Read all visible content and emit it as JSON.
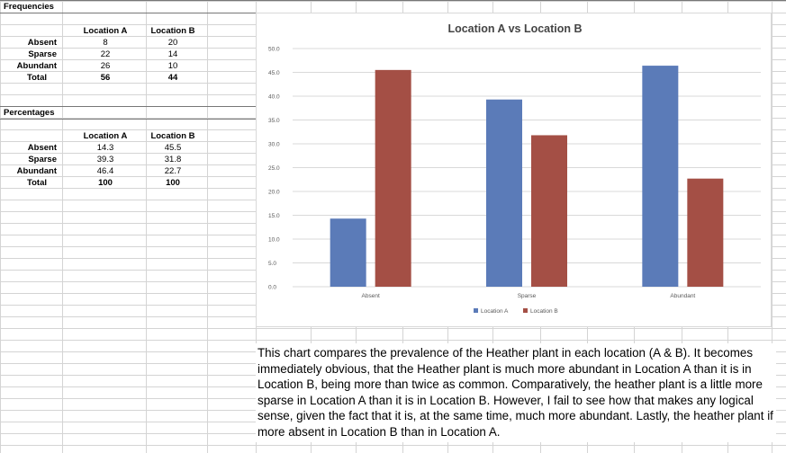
{
  "frequencies": {
    "title": "Frequencies",
    "headers": [
      "Location A",
      "Location B"
    ],
    "rows": [
      {
        "label": "Absent",
        "a": "8",
        "b": "20"
      },
      {
        "label": "Sparse",
        "a": "22",
        "b": "14"
      },
      {
        "label": "Abundant",
        "a": "26",
        "b": "10"
      },
      {
        "label": "Total",
        "a": "56",
        "b": "44"
      }
    ]
  },
  "percentages": {
    "title": "Percentages",
    "headers": [
      "Location A",
      "Location B"
    ],
    "rows": [
      {
        "label": "Absent",
        "a": "14.3",
        "b": "45.5"
      },
      {
        "label": "Sparse",
        "a": "39.3",
        "b": "31.8"
      },
      {
        "label": "Abundant",
        "a": "46.4",
        "b": "22.7"
      },
      {
        "label": "Total",
        "a": "100",
        "b": "100"
      }
    ]
  },
  "chart_data": {
    "type": "bar",
    "title": "Location A vs Location B",
    "categories": [
      "Absent",
      "Sparse",
      "Abundant"
    ],
    "series": [
      {
        "name": "Location A",
        "values": [
          14.3,
          39.3,
          46.4
        ],
        "color": "#5b7bb8"
      },
      {
        "name": "Location B",
        "values": [
          45.5,
          31.8,
          22.7
        ],
        "color": "#a44f45"
      }
    ],
    "ylim": [
      0,
      50
    ],
    "yticks": [
      "0.0",
      "5.0",
      "10.0",
      "15.0",
      "20.0",
      "25.0",
      "30.0",
      "35.0",
      "40.0",
      "45.0",
      "50.0"
    ],
    "grid": true,
    "legend": "bottom"
  },
  "commentary": "This chart compares the prevalence of the Heather plant in each location (A & B). It becomes immediately obvious, that the Heather plant is much more abundant in Location A than it is in Location B, being more than twice as common. Comparatively, the heather plant is a little more sparse in Location A than it is in Location B. However, I fail to see how that makes any logical sense, given the fact that it is, at the same time, much more abundant. Lastly, the heather plant if more absent in Location B than in Location A."
}
